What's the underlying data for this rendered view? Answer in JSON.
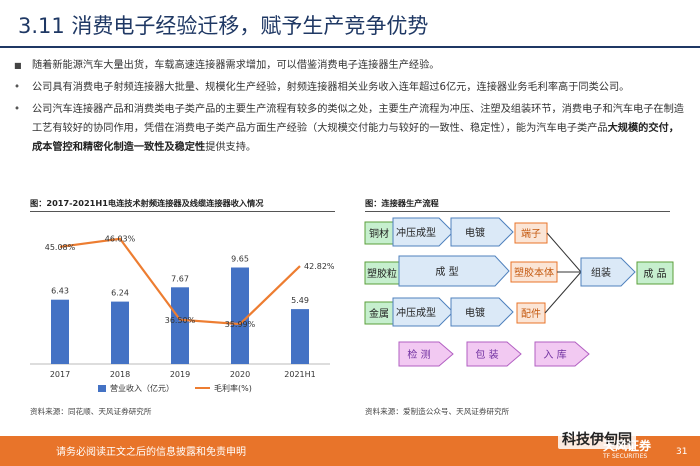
{
  "page": {
    "title": "3.11 消费电子经验迁移，赋予生产竞争优势",
    "bullets": [
      {
        "mark": "■",
        "segments": [
          {
            "t": "随着新能源汽车大量出货，车载高速连接器需求增加，可以借鉴消费电子连接器生产经验。",
            "b": false
          }
        ]
      },
      {
        "mark": "•",
        "segments": [
          {
            "t": "公司具有消费电子射频连接器大批量、规模化生产经验，射频连接器相关业务收入连年超过6亿元，连接器业务毛利率高于同类公司。",
            "b": false
          }
        ]
      },
      {
        "mark": "•",
        "segments": [
          {
            "t": "公司汽车连接器产品和消费类电子类产品的主要生产流程有较多的类似之处，主要生产流程为冲压、注塑及组装环节，消费电子和汽车电子在制造工艺有较好的协同作用，凭借在消费电子类产品方面生产经验（大规模交付能力与较好的一致性、稳定性），能为汽车电子类产品",
            "b": false
          },
          {
            "t": "大规模的交付，成本管控和精密化制造一致性及稳定性",
            "b": true
          },
          {
            "t": "提供支持。",
            "b": false
          }
        ]
      }
    ],
    "footer_text": "请务必阅读正文之后的信息披露和免责申明",
    "brand": "天风证券",
    "brand_sub": "TF SECURITIES",
    "page_number": "31",
    "watermark": "科技伊甸园"
  },
  "left_figure": {
    "title": "图：2017-2021H1电连技术射频连接器及线缆连接器收入情况",
    "source": "资料来源：同花顺、天风证券研究所"
  },
  "right_figure": {
    "title": "图：连接器生产流程",
    "source": "资料来源：爱制造公众号、天风证券研究所",
    "nodes": {
      "copper": "铜材",
      "stamp1": "冲压成型",
      "plate1": "电镀",
      "terminal": "端子",
      "plastic": "塑胶粒",
      "mold": "成 型",
      "body": "塑胶本体",
      "assemble": "组装",
      "product": "成 品",
      "metal": "金属",
      "stamp2": "冲压成型",
      "plate2": "电镀",
      "parts": "配件",
      "inspect": "检 测",
      "pack": "包 装",
      "warehouse": "入 库"
    }
  },
  "chart_data": {
    "type": "bar",
    "categories": [
      "2017",
      "2018",
      "2019",
      "2020",
      "2021H1"
    ],
    "series": [
      {
        "name": "营业收入（亿元）",
        "type": "bar",
        "values": [
          6.43,
          6.24,
          7.67,
          9.65,
          5.49
        ],
        "labels": [
          "6.43",
          "6.24",
          "7.67",
          "9.65",
          "5.49"
        ],
        "color": "#4472c4"
      },
      {
        "name": "毛利率(%)",
        "type": "line",
        "values": [
          45.08,
          46.03,
          36.5,
          35.99,
          42.82
        ],
        "labels": [
          "45.08%",
          "46.03%",
          "36.50%",
          "35.99%",
          "42.82%"
        ],
        "color": "#ed7d31"
      }
    ],
    "legend_position": "bottom",
    "grid": false
  }
}
